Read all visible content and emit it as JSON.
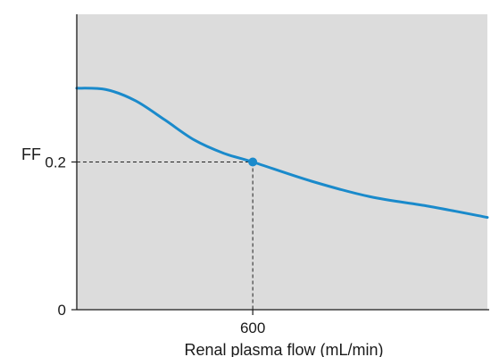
{
  "chart_data": {
    "type": "line",
    "title": "",
    "xlabel": "Renal plasma flow (mL/min)",
    "ylabel": "FF",
    "xlim": [
      0,
      1400
    ],
    "ylim": [
      0,
      0.4
    ],
    "x_ticks": [
      {
        "value": 600,
        "label": "600"
      }
    ],
    "y_ticks": [
      {
        "value": 0,
        "label": "0"
      },
      {
        "value": 0.2,
        "label": "0.2"
      }
    ],
    "series": [
      {
        "color": "#1a8acb",
        "x": [
          0,
          100,
          200,
          300,
          400,
          500,
          600,
          800,
          1000,
          1200,
          1400
        ],
        "y": [
          0.3,
          0.298,
          0.283,
          0.257,
          0.23,
          0.212,
          0.2,
          0.174,
          0.153,
          0.14,
          0.125
        ]
      }
    ],
    "highlight_point": {
      "x": 600,
      "y": 0.2,
      "color": "#1a8acb"
    },
    "guide_lines": true,
    "plot_background": "#dcdcdc",
    "axis_color": "#1a1a1a"
  }
}
